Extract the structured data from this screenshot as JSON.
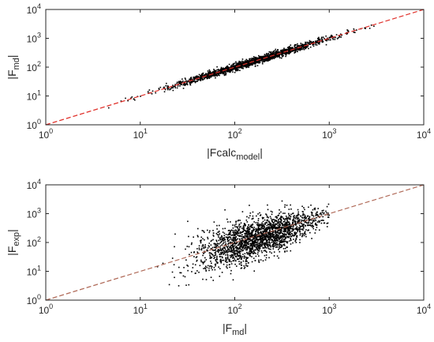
{
  "chart_data": [
    {
      "type": "scatter",
      "title": "",
      "xscale": "log",
      "yscale": "log",
      "xlim": [
        1,
        10000
      ],
      "ylim": [
        1,
        10000
      ],
      "xlabel": {
        "base": "|Fcalc",
        "sub": "model",
        "tail": "|"
      },
      "ylabel": {
        "base": "|F",
        "sub": "md",
        "tail": "|"
      },
      "x_ticks": [
        {
          "base": "10",
          "exp": "0",
          "value": 1
        },
        {
          "base": "10",
          "exp": "1",
          "value": 10
        },
        {
          "base": "10",
          "exp": "2",
          "value": 100
        },
        {
          "base": "10",
          "exp": "3",
          "value": 1000
        },
        {
          "base": "10",
          "exp": "4",
          "value": 10000
        }
      ],
      "y_ticks": [
        {
          "base": "10",
          "exp": "0",
          "value": 1
        },
        {
          "base": "10",
          "exp": "1",
          "value": 10
        },
        {
          "base": "10",
          "exp": "2",
          "value": 100
        },
        {
          "base": "10",
          "exp": "3",
          "value": 1000
        },
        {
          "base": "10",
          "exp": "4",
          "value": 10000
        }
      ],
      "grid": false,
      "reference_line": {
        "style": "dashed",
        "color": "#e0302a",
        "from": [
          1,
          1
        ],
        "to": [
          10000,
          10000
        ]
      },
      "marker_color": "#000000",
      "scatter_summary": {
        "relation": "y ≈ x",
        "x_range": [
          4,
          3000
        ],
        "density_peak_x": 150,
        "relative_scatter": 0.06,
        "approx_points": 1800
      }
    },
    {
      "type": "scatter",
      "title": "",
      "xscale": "log",
      "yscale": "log",
      "xlim": [
        1,
        10000
      ],
      "ylim": [
        1,
        10000
      ],
      "xlabel": {
        "base": "|F",
        "sub": "md",
        "tail": "|"
      },
      "ylabel": {
        "base": "|F",
        "sub": "exp",
        "tail": "|"
      },
      "x_ticks": [
        {
          "base": "10",
          "exp": "0",
          "value": 1
        },
        {
          "base": "10",
          "exp": "1",
          "value": 10
        },
        {
          "base": "10",
          "exp": "2",
          "value": 100
        },
        {
          "base": "10",
          "exp": "3",
          "value": 1000
        },
        {
          "base": "10",
          "exp": "4",
          "value": 10000
        }
      ],
      "y_ticks": [
        {
          "base": "10",
          "exp": "0",
          "value": 1
        },
        {
          "base": "10",
          "exp": "1",
          "value": 10
        },
        {
          "base": "10",
          "exp": "2",
          "value": 100
        },
        {
          "base": "10",
          "exp": "3",
          "value": 1000
        },
        {
          "base": "10",
          "exp": "4",
          "value": 10000
        }
      ],
      "grid": false,
      "reference_line": {
        "style": "dashed",
        "color": "#b06a58",
        "from": [
          1,
          1
        ],
        "to": [
          10000,
          10000
        ]
      },
      "marker_color": "#000000",
      "scatter_summary": {
        "relation": "y ≈ x",
        "x_range": [
          10,
          1000
        ],
        "y_range": [
          3,
          3000
        ],
        "density_peak_x": 150,
        "approx_points": 2200
      }
    }
  ]
}
